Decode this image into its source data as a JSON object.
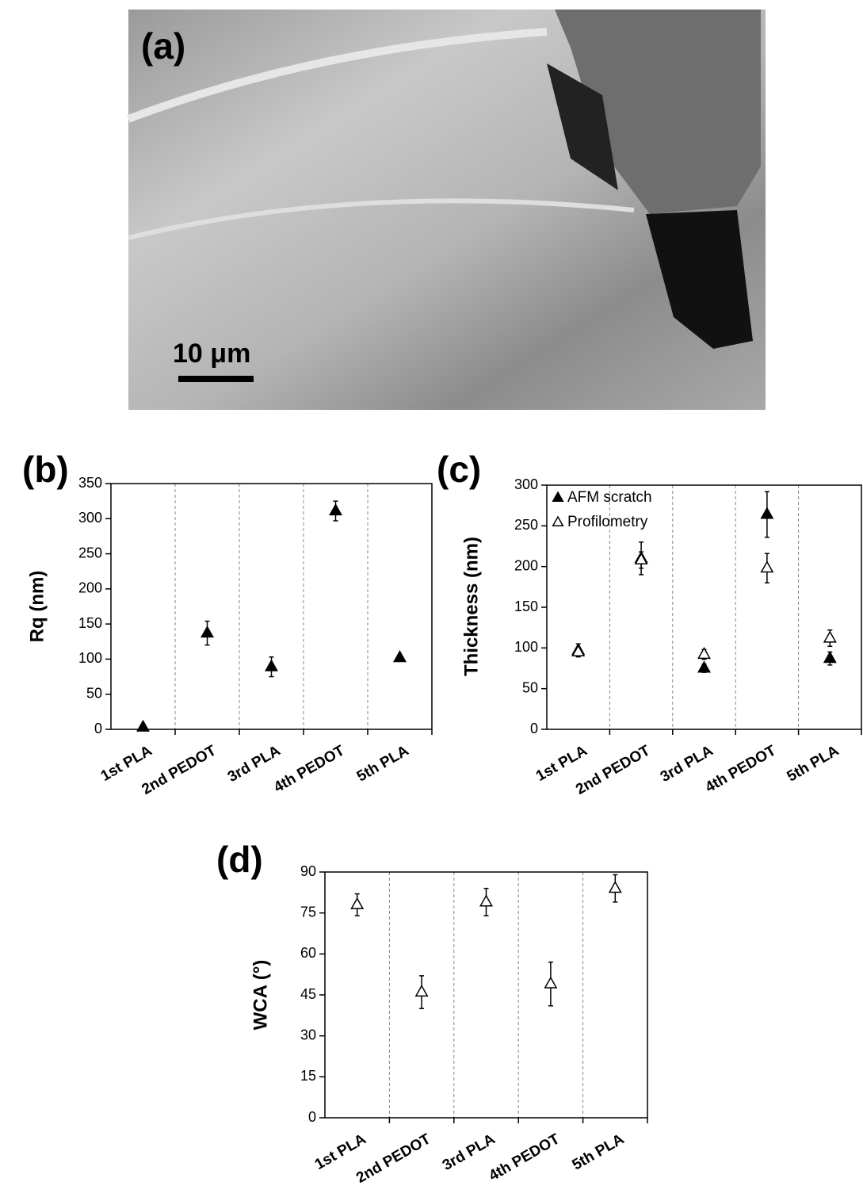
{
  "image": {
    "panel_label": "(a)",
    "scale_bar": "10 μm"
  },
  "chart_data": [
    {
      "type": "errorscatter",
      "panel_label": "(b)",
      "ylabel": "Rq (nm)",
      "categories": [
        "1st PLA",
        "2nd PEDOT",
        "3rd PLA",
        "4th PEDOT",
        "5th PLA"
      ],
      "series": [
        {
          "marker": "filled",
          "color": "#000000",
          "values": [
            3,
            137,
            89,
            311,
            102
          ],
          "errors": [
            2,
            17,
            14,
            14,
            3
          ]
        }
      ],
      "ylim": [
        0,
        350
      ],
      "yticks": [
        0,
        50,
        100,
        150,
        200,
        250,
        300,
        350
      ],
      "grid": true
    },
    {
      "type": "errorscatter",
      "panel_label": "(c)",
      "ylabel": "Thickness (nm)",
      "categories": [
        "1st PLA",
        "2nd PEDOT",
        "3rd PLA",
        "4th PEDOT",
        "5th PLA"
      ],
      "series": [
        {
          "name": "AFM scratch",
          "marker": "filled",
          "color": "#000000",
          "values": [
            97,
            210,
            75,
            264,
            87
          ],
          "errors": [
            8,
            20,
            5,
            28,
            8
          ]
        },
        {
          "name": "Profilometry",
          "marker": "open",
          "color": "#000000",
          "values": [
            95,
            208,
            92,
            198,
            112
          ],
          "errors": [
            5,
            10,
            6,
            18,
            10
          ]
        }
      ],
      "ylim": [
        0,
        300
      ],
      "yticks": [
        0,
        50,
        100,
        150,
        200,
        250,
        300
      ],
      "grid": true,
      "legend": "upper left"
    },
    {
      "type": "errorscatter",
      "panel_label": "(d)",
      "ylabel": "WCA (°)",
      "categories": [
        "1st PLA",
        "2nd PEDOT",
        "3rd PLA",
        "4th PEDOT",
        "5th PLA"
      ],
      "series": [
        {
          "marker": "open",
          "color": "#000000",
          "values": [
            78,
            46,
            79,
            49,
            84
          ],
          "errors": [
            4,
            6,
            5,
            8,
            5
          ]
        }
      ],
      "ylim": [
        0,
        90
      ],
      "yticks": [
        0,
        15,
        30,
        45,
        60,
        75,
        90
      ],
      "grid": true
    }
  ]
}
